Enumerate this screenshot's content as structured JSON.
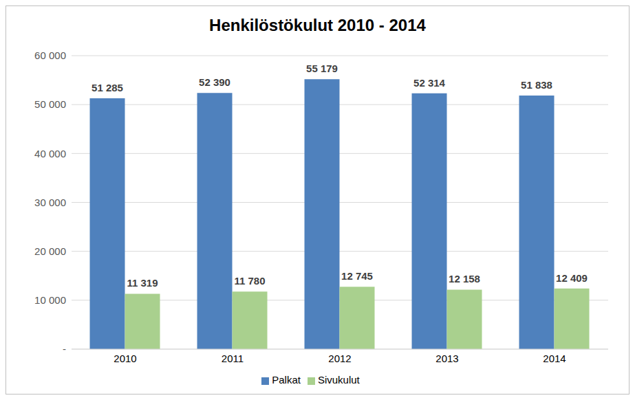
{
  "chart_data": {
    "type": "bar",
    "title": "Henkilöstökulut 2010 - 2014",
    "categories": [
      "2010",
      "2011",
      "2012",
      "2013",
      "2014"
    ],
    "series": [
      {
        "name": "Palkat",
        "color": "#4f81bd",
        "values": [
          51285,
          52390,
          55179,
          52314,
          51838
        ],
        "value_labels": [
          "51 285",
          "52 390",
          "55 179",
          "52 314",
          "51 838"
        ]
      },
      {
        "name": "Sivukulut",
        "color": "#a9d08e",
        "values": [
          11319,
          11780,
          12745,
          12158,
          12409
        ],
        "value_labels": [
          "11 319",
          "11 780",
          "12 745",
          "12 158",
          "12 409"
        ]
      }
    ],
    "ylim": [
      0,
      60000
    ],
    "yticks": [
      {
        "value": 0,
        "label": "-"
      },
      {
        "value": 10000,
        "label": "10 000"
      },
      {
        "value": 20000,
        "label": "20 000"
      },
      {
        "value": 30000,
        "label": "30 000"
      },
      {
        "value": 40000,
        "label": "40 000"
      },
      {
        "value": 50000,
        "label": "50 000"
      },
      {
        "value": 60000,
        "label": "60 000"
      }
    ],
    "grid": true,
    "legend": "bottom",
    "data_labels": true
  }
}
